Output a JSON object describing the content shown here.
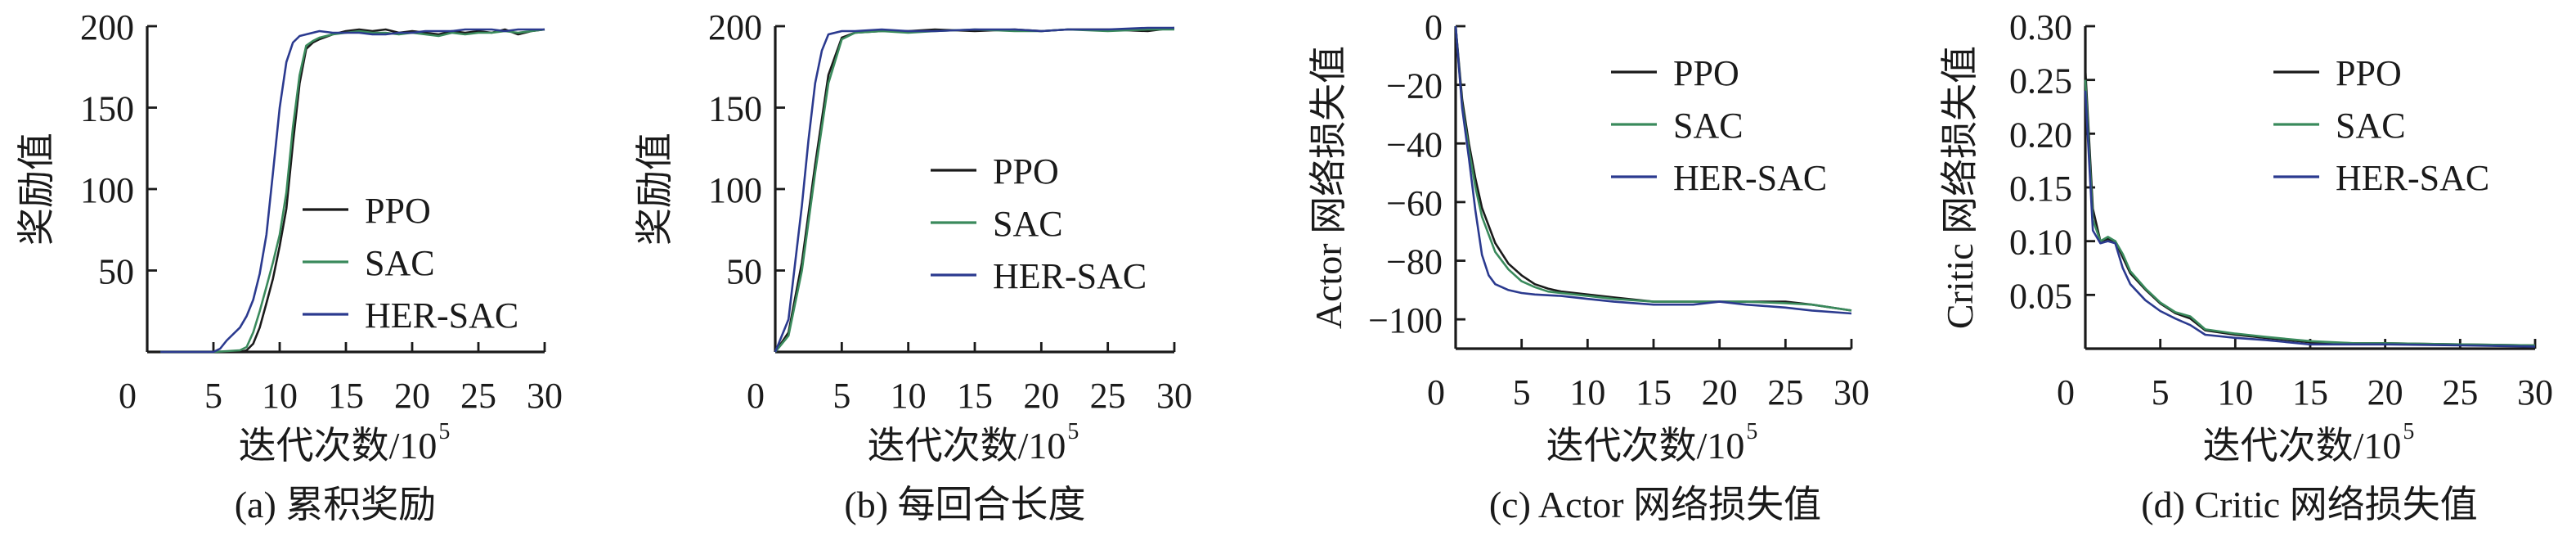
{
  "colors": {
    "PPO": "#1a1a1a",
    "SAC": "#3a8a5c",
    "HER-SAC": "#2b3a8f",
    "axis": "#1a1a1a"
  },
  "chart_data": [
    {
      "type": "line",
      "caption": "(a) 累积奖励",
      "xlabel": "迭代次数/10",
      "xlabel_sup": "5",
      "ylabel": "奖励值",
      "xlim": [
        0,
        30
      ],
      "ylim": [
        0,
        200
      ],
      "xticks": [
        0,
        5,
        10,
        15,
        20,
        25,
        30
      ],
      "yticks": [
        50,
        100,
        150,
        200
      ],
      "ytick_labels": [
        "50",
        "100",
        "150",
        "200"
      ],
      "xtick_labels": [
        "0",
        "5",
        "10",
        "15",
        "20",
        "25",
        "30"
      ],
      "legend": "center-right",
      "grid": false,
      "series": [
        {
          "name": "PPO",
          "x": [
            1,
            5,
            7,
            7.5,
            8,
            8.5,
            9,
            9.5,
            10,
            10.5,
            11,
            11.5,
            12,
            12.5,
            13,
            14,
            15,
            16,
            17,
            18,
            19,
            20,
            21,
            22,
            23,
            24,
            25,
            26,
            27,
            28,
            29,
            30
          ],
          "y": [
            0,
            0,
            0,
            1,
            5,
            15,
            30,
            45,
            65,
            88,
            128,
            165,
            186,
            190,
            192,
            195,
            197,
            198,
            197,
            198,
            196,
            197,
            196,
            195,
            197,
            196,
            197,
            196,
            198,
            195,
            197,
            198
          ]
        },
        {
          "name": "SAC",
          "x": [
            1,
            5,
            7,
            7.5,
            8,
            8.5,
            9,
            9.5,
            10,
            10.5,
            11,
            11.5,
            12,
            12.5,
            13,
            14,
            15,
            16,
            17,
            18,
            19,
            20,
            21,
            22,
            23,
            24,
            25,
            26,
            27,
            28,
            29,
            30
          ],
          "y": [
            0,
            0,
            1,
            3,
            12,
            25,
            40,
            55,
            72,
            98,
            138,
            170,
            188,
            191,
            193,
            195,
            196,
            197,
            196,
            196,
            195,
            196,
            195,
            194,
            196,
            195,
            196,
            196,
            197,
            196,
            197,
            198
          ]
        },
        {
          "name": "HER-SAC",
          "x": [
            1,
            5,
            5.5,
            6,
            7,
            7.5,
            8,
            8.5,
            9,
            9.5,
            10,
            10.5,
            11,
            11.5,
            12,
            13,
            14,
            15,
            16,
            17,
            18,
            19,
            20,
            21,
            22,
            23,
            24,
            25,
            26,
            27,
            28,
            29,
            30
          ],
          "y": [
            0,
            0,
            2,
            7,
            15,
            22,
            32,
            48,
            72,
            110,
            150,
            178,
            190,
            194,
            195,
            197,
            196,
            196,
            196,
            195,
            195,
            196,
            196,
            197,
            197,
            197,
            198,
            198,
            198,
            197,
            198,
            198,
            198
          ]
        }
      ]
    },
    {
      "type": "line",
      "caption": "(b) 每回合长度",
      "xlabel": "迭代次数/10",
      "xlabel_sup": "5",
      "ylabel": "奖励值",
      "xlim": [
        0,
        30
      ],
      "ylim": [
        0,
        200
      ],
      "xticks": [
        0,
        5,
        10,
        15,
        20,
        25,
        30
      ],
      "yticks": [
        50,
        100,
        150,
        200
      ],
      "ytick_labels": [
        "50",
        "100",
        "150",
        "200"
      ],
      "xtick_labels": [
        "0",
        "5",
        "10",
        "15",
        "20",
        "25",
        "30"
      ],
      "legend": "center-right",
      "grid": false,
      "series": [
        {
          "name": "PPO",
          "x": [
            0,
            1,
            2,
            3,
            4,
            5,
            6,
            8,
            10,
            12,
            15,
            18,
            20,
            22,
            25,
            28,
            30
          ],
          "y": [
            0,
            12,
            55,
            115,
            170,
            193,
            196,
            197,
            197,
            198,
            197,
            198,
            197,
            198,
            198,
            197,
            199
          ]
        },
        {
          "name": "SAC",
          "x": [
            0,
            1,
            2,
            3,
            4,
            5,
            6,
            8,
            10,
            12,
            15,
            18,
            20,
            22,
            25,
            28,
            30
          ],
          "y": [
            0,
            10,
            50,
            110,
            165,
            192,
            196,
            197,
            196,
            197,
            198,
            197,
            197,
            198,
            197,
            198,
            198
          ]
        },
        {
          "name": "HER-SAC",
          "x": [
            0,
            1,
            2,
            2.5,
            3,
            3.5,
            4,
            5,
            6,
            8,
            10,
            12,
            15,
            18,
            20,
            22,
            25,
            28,
            30
          ],
          "y": [
            0,
            20,
            90,
            130,
            165,
            185,
            195,
            197,
            197,
            198,
            197,
            197,
            198,
            198,
            197,
            198,
            198,
            199,
            199
          ]
        }
      ]
    },
    {
      "type": "line",
      "caption": "(c) Actor 网络损失值",
      "xlabel": "迭代次数/10",
      "xlabel_sup": "5",
      "ylabel": "Actor 网络损失值",
      "xlim": [
        0,
        30
      ],
      "ylim": [
        -110,
        0
      ],
      "xticks": [
        0,
        5,
        10,
        15,
        20,
        25,
        30
      ],
      "yticks": [
        0,
        -20,
        -40,
        -60,
        -80,
        -100
      ],
      "ytick_labels": [
        "0",
        "−20",
        "−40",
        "−60",
        "−80",
        "−100"
      ],
      "xtick_labels": [
        "0",
        "5",
        "10",
        "15",
        "20",
        "25",
        "30"
      ],
      "legend": "top-right",
      "grid": false,
      "series": [
        {
          "name": "PPO",
          "x": [
            0,
            0.5,
            1,
            1.5,
            2,
            3,
            4,
            5,
            6,
            7,
            8,
            10,
            12,
            15,
            18,
            20,
            22,
            25,
            27,
            30
          ],
          "y": [
            0,
            -25,
            -40,
            -52,
            -62,
            -74,
            -81,
            -85,
            -88,
            -89.5,
            -90.5,
            -91.5,
            -92.5,
            -94,
            -94,
            -94,
            -94,
            -94,
            -95,
            -97
          ]
        },
        {
          "name": "SAC",
          "x": [
            0,
            0.5,
            1,
            1.5,
            2,
            3,
            4,
            5,
            6,
            7,
            8,
            10,
            12,
            15,
            18,
            20,
            22,
            25,
            27,
            30
          ],
          "y": [
            0,
            -27,
            -42,
            -55,
            -65,
            -77,
            -83,
            -87,
            -89,
            -90.5,
            -91,
            -92,
            -93,
            -94,
            -94,
            -94,
            -94,
            -94.5,
            -95,
            -97
          ]
        },
        {
          "name": "HER-SAC",
          "x": [
            0,
            0.5,
            1,
            1.5,
            2,
            2.5,
            3,
            4,
            5,
            6,
            8,
            10,
            12,
            15,
            18,
            20,
            22,
            25,
            27,
            30
          ],
          "y": [
            0,
            -28,
            -45,
            -63,
            -78,
            -85,
            -88,
            -90,
            -91,
            -91.5,
            -92,
            -93,
            -94,
            -95,
            -95,
            -94,
            -95,
            -96,
            -97,
            -98
          ]
        }
      ]
    },
    {
      "type": "line",
      "caption": "(d) Critic 网络损失值",
      "xlabel": "迭代次数/10",
      "xlabel_sup": "5",
      "ylabel": "Critic 网络损失值",
      "xlim": [
        0,
        30
      ],
      "ylim": [
        0,
        0.3
      ],
      "xticks": [
        0,
        5,
        10,
        15,
        20,
        25,
        30
      ],
      "yticks": [
        0.05,
        0.1,
        0.15,
        0.2,
        0.25,
        0.3
      ],
      "ytick_labels": [
        "0.05",
        "0.10",
        "0.15",
        "0.20",
        "0.25",
        "0.30"
      ],
      "xtick_labels": [
        "0",
        "5",
        "10",
        "15",
        "20",
        "25",
        "30"
      ],
      "legend": "top-right",
      "grid": false,
      "series": [
        {
          "name": "PPO",
          "x": [
            0,
            0.5,
            1,
            1.5,
            2,
            2.5,
            3,
            4,
            5,
            6,
            7,
            8,
            10,
            12,
            15,
            18,
            20,
            25,
            30
          ],
          "y": [
            0.26,
            0.13,
            0.1,
            0.102,
            0.1,
            0.085,
            0.07,
            0.055,
            0.042,
            0.033,
            0.028,
            0.017,
            0.013,
            0.01,
            0.006,
            0.005,
            0.005,
            0.004,
            0.003
          ]
        },
        {
          "name": "SAC",
          "x": [
            0,
            0.5,
            1,
            1.5,
            2,
            2.5,
            3,
            4,
            5,
            6,
            7,
            8,
            10,
            12,
            15,
            18,
            20,
            25,
            30
          ],
          "y": [
            0.25,
            0.12,
            0.1,
            0.104,
            0.1,
            0.088,
            0.072,
            0.056,
            0.043,
            0.034,
            0.03,
            0.018,
            0.014,
            0.011,
            0.007,
            0.005,
            0.005,
            0.004,
            0.003
          ]
        },
        {
          "name": "HER-SAC",
          "x": [
            0,
            0.5,
            1,
            1.5,
            2,
            2.5,
            3,
            4,
            5,
            6,
            7,
            8,
            10,
            12,
            15,
            18,
            20,
            25,
            30
          ],
          "y": [
            0.24,
            0.11,
            0.098,
            0.1,
            0.098,
            0.075,
            0.06,
            0.045,
            0.035,
            0.028,
            0.022,
            0.013,
            0.01,
            0.008,
            0.004,
            0.004,
            0.004,
            0.003,
            0.002
          ]
        }
      ]
    }
  ]
}
